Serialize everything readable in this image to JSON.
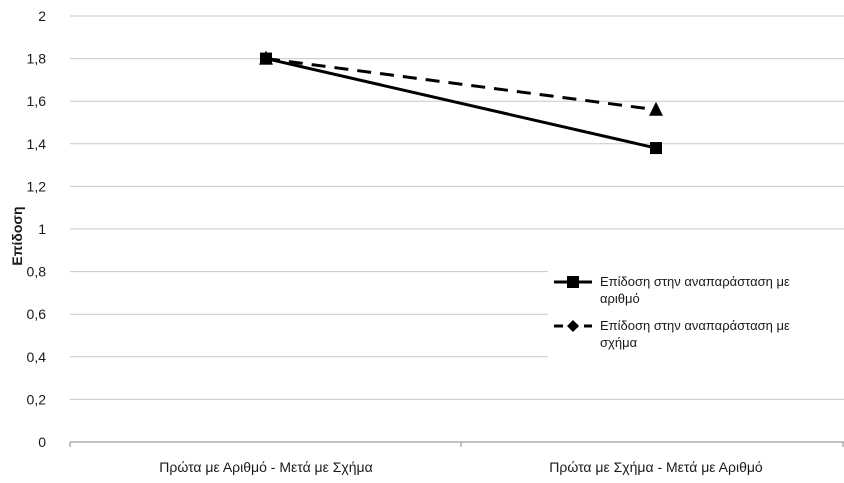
{
  "chart_data": {
    "type": "line",
    "title": "",
    "xlabel": "",
    "ylabel": "Επίδοση",
    "categories": [
      "Πρώτα με Αριθμό - Μετά με Σχήμα",
      "Πρώτα με Σχήμα - Μετά με Αριθμό"
    ],
    "ylim": [
      0,
      2
    ],
    "yticks": [
      "0",
      "0,2",
      "0,4",
      "0,6",
      "0,8",
      "1",
      "1,2",
      "1,4",
      "1,6",
      "1,8",
      "2"
    ],
    "grid": true,
    "legend_position": "right",
    "series": [
      {
        "name": "Επίδοση στην αναπαράσταση με αριθμό",
        "values": [
          1.8,
          1.38
        ],
        "line_style": "solid",
        "marker": "square",
        "color": "#000000"
      },
      {
        "name": "Επίδοση στην αναπαράσταση με σχήμα",
        "values": [
          1.8,
          1.56
        ],
        "line_style": "dashed",
        "marker": "triangle",
        "legend_marker": "diamond",
        "color": "#000000"
      }
    ],
    "legend_lines": [
      [
        "Επίδοση στην αναπαράσταση με",
        "αριθμό"
      ],
      [
        "Επίδοση στην αναπαράσταση με",
        "σχήμα"
      ]
    ],
    "gridline_color": "#c8c8c8"
  }
}
